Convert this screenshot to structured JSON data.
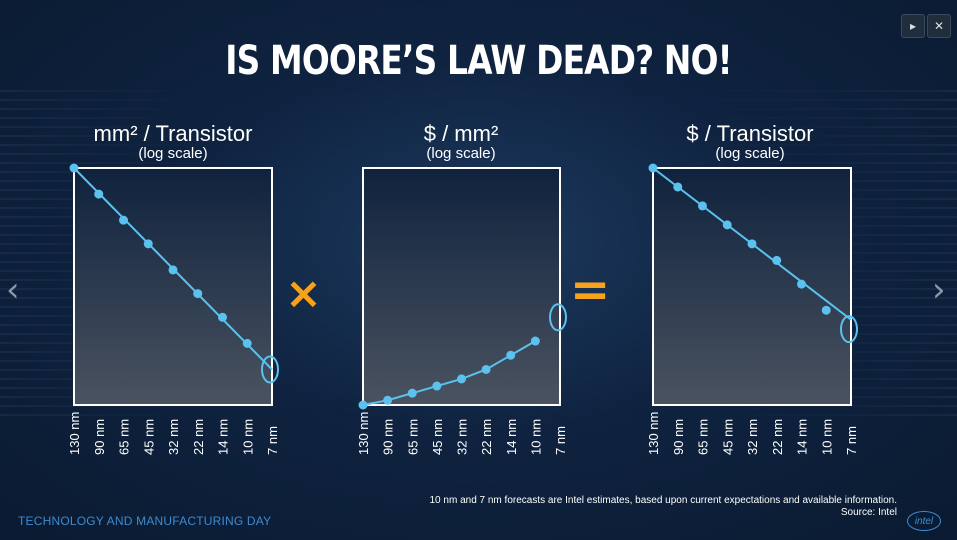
{
  "slide": {
    "title": "IS MOORE’S LAW DEAD? NO!",
    "footer_left": "TECHNOLOGY AND MANUFACTURING DAY",
    "footnote_line1": "10 nm and 7 nm forecasts are Intel estimates, based upon current expectations and available information.",
    "footnote_line2": "Source: Intel",
    "logo_text": "intel",
    "op_multiply": "×",
    "op_equals": "=",
    "nav_prev": "‹",
    "nav_next": "›",
    "play_icon": "▸",
    "close_icon": "✕"
  },
  "charts": [
    {
      "title": "mm² / Transistor",
      "subtitle": "(log scale)"
    },
    {
      "title": "$ / mm²",
      "subtitle": "(log scale)"
    },
    {
      "title": "$ / Transistor",
      "subtitle": "(log scale)"
    }
  ],
  "chart_data": [
    {
      "type": "line",
      "title": "mm² / Transistor",
      "subtitle": "(log scale)",
      "y_scale": "log",
      "categories": [
        "130 nm",
        "90 nm",
        "65 nm",
        "45 nm",
        "32 nm",
        "22 nm",
        "14 nm",
        "10 nm",
        "7 nm"
      ],
      "points": [
        1.0,
        0.89,
        0.78,
        0.68,
        0.57,
        0.47,
        0.37,
        0.26,
        0.15
      ],
      "trend": [
        1.0,
        0.15
      ],
      "highlight_last": true,
      "missing_last_point": true
    },
    {
      "type": "line",
      "title": "$ / mm²",
      "subtitle": "(log scale)",
      "y_scale": "log",
      "categories": [
        "130 nm",
        "90 nm",
        "65 nm",
        "45 nm",
        "32 nm",
        "22 nm",
        "14 nm",
        "10 nm",
        "7 nm"
      ],
      "points": [
        0.0,
        0.02,
        0.05,
        0.08,
        0.11,
        0.15,
        0.21,
        0.27,
        0.37
      ],
      "highlight_last": true,
      "missing_last_point": true
    },
    {
      "type": "line",
      "title": "$ / Transistor",
      "subtitle": "(log scale)",
      "y_scale": "log",
      "categories": [
        "130 nm",
        "90 nm",
        "65 nm",
        "45 nm",
        "32 nm",
        "22 nm",
        "14 nm",
        "10 nm",
        "7 nm"
      ],
      "points": [
        1.0,
        0.92,
        0.84,
        0.76,
        0.68,
        0.61,
        0.51,
        0.4,
        0.32
      ],
      "trend": [
        1.0,
        0.36
      ],
      "highlight_last": true,
      "missing_last_point": true
    }
  ]
}
